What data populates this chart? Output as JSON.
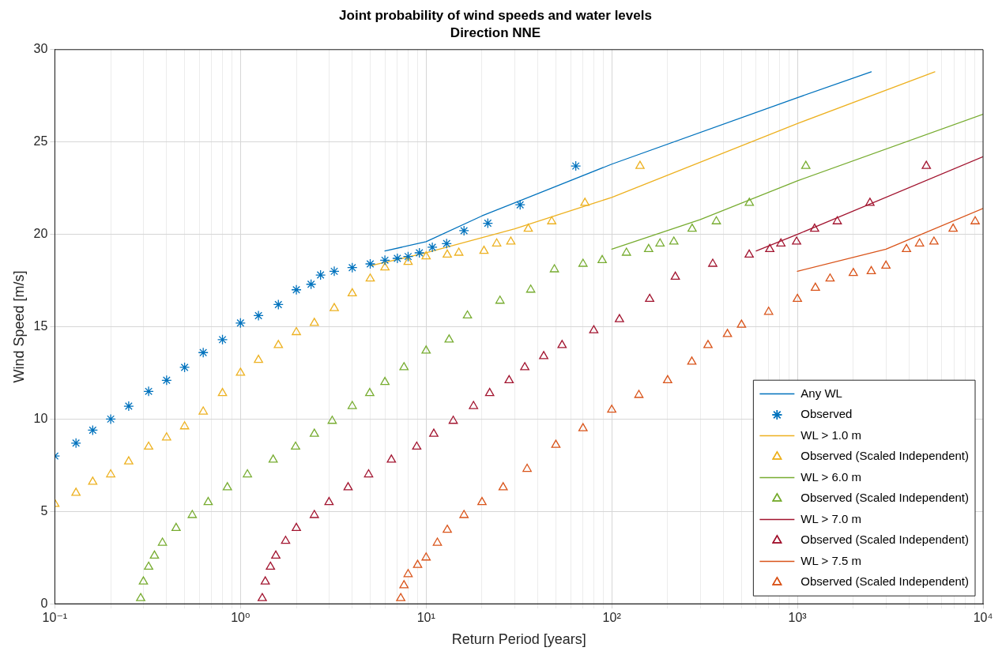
{
  "chart_data": {
    "type": "line",
    "title": "Joint probability of wind speeds and water levels",
    "subtitle": "Direction NNE",
    "xlabel": "Return Period [years]",
    "ylabel": "Wind Speed [m/s]",
    "log": "x",
    "grid": true,
    "legend": "bottom right",
    "xlim": [
      0.1,
      10000
    ],
    "ylim": [
      0,
      30
    ],
    "yticks": [
      0,
      5,
      10,
      15,
      20,
      25,
      30
    ],
    "xticks": [
      {
        "value": 0.1,
        "label": "10⁻¹"
      },
      {
        "value": 0.2,
        "label": null
      },
      {
        "value": 0.3,
        "label": null
      },
      {
        "value": 0.4,
        "label": null
      },
      {
        "value": 0.5,
        "label": null
      },
      {
        "value": 0.6,
        "label": null
      },
      {
        "value": 0.7,
        "label": null
      },
      {
        "value": 0.8,
        "label": null
      },
      {
        "value": 0.9,
        "label": null
      },
      {
        "value": 1,
        "label": "10⁰"
      },
      {
        "value": 2,
        "label": null
      },
      {
        "value": 3,
        "label": null
      },
      {
        "value": 4,
        "label": null
      },
      {
        "value": 5,
        "label": null
      },
      {
        "value": 6,
        "label": null
      },
      {
        "value": 7,
        "label": null
      },
      {
        "value": 8,
        "label": null
      },
      {
        "value": 9,
        "label": null
      },
      {
        "value": 10,
        "label": "10¹"
      },
      {
        "value": 20,
        "label": null
      },
      {
        "value": 30,
        "label": null
      },
      {
        "value": 40,
        "label": null
      },
      {
        "value": 50,
        "label": null
      },
      {
        "value": 60,
        "label": null
      },
      {
        "value": 70,
        "label": null
      },
      {
        "value": 80,
        "label": null
      },
      {
        "value": 90,
        "label": null
      },
      {
        "value": 100,
        "label": "10²"
      },
      {
        "value": 200,
        "label": null
      },
      {
        "value": 300,
        "label": null
      },
      {
        "value": 400,
        "label": null
      },
      {
        "value": 500,
        "label": null
      },
      {
        "value": 600,
        "label": null
      },
      {
        "value": 700,
        "label": null
      },
      {
        "value": 800,
        "label": null
      },
      {
        "value": 900,
        "label": null
      },
      {
        "value": 1000,
        "label": "10³"
      },
      {
        "value": 2000,
        "label": null
      },
      {
        "value": 3000,
        "label": null
      },
      {
        "value": 4000,
        "label": null
      },
      {
        "value": 5000,
        "label": null
      },
      {
        "value": 6000,
        "label": null
      },
      {
        "value": 7000,
        "label": null
      },
      {
        "value": 8000,
        "label": null
      },
      {
        "value": 9000,
        "label": null
      },
      {
        "value": 10000,
        "label": "10⁴"
      }
    ],
    "series": [
      {
        "name": "Any WL",
        "marker": "none",
        "color": "#0072bd",
        "x": [
          6,
          10,
          20,
          100,
          1000,
          2500
        ],
        "values": [
          19.1,
          19.6,
          21.0,
          23.8,
          27.4,
          28.8
        ]
      },
      {
        "name": "Observed",
        "type": "scatter",
        "marker": "cross",
        "color": "#0072bd",
        "x": [
          0.1,
          0.13,
          0.16,
          0.2,
          0.25,
          0.32,
          0.4,
          0.5,
          0.63,
          0.8,
          1,
          1.25,
          1.6,
          2,
          2.4,
          2.7,
          3.2,
          4,
          5,
          6,
          7,
          8,
          9.2,
          10.8,
          12.9,
          16,
          21.5,
          32.1,
          64
        ],
        "values": [
          8.0,
          8.7,
          9.4,
          10.0,
          10.7,
          11.5,
          12.1,
          12.8,
          13.6,
          14.3,
          15.2,
          15.6,
          16.2,
          17.0,
          17.3,
          17.8,
          18.0,
          18.2,
          18.4,
          18.6,
          18.7,
          18.8,
          19.0,
          19.3,
          19.5,
          20.2,
          20.6,
          21.6,
          23.7
        ]
      },
      {
        "name": "WL > 1.0 m",
        "marker": "none",
        "color": "#edb120",
        "x": [
          5,
          10,
          30,
          100,
          1000,
          5500
        ],
        "values": [
          18.3,
          19.0,
          20.3,
          22.0,
          26.0,
          28.8
        ]
      },
      {
        "name": "Observed (Scaled Independent)",
        "type": "scatter",
        "marker": "triangle",
        "color": "#edb120",
        "x": [
          0.1,
          0.13,
          0.16,
          0.2,
          0.25,
          0.32,
          0.4,
          0.5,
          0.63,
          0.8,
          1,
          1.25,
          1.6,
          2,
          2.5,
          3.2,
          4,
          5,
          6,
          8,
          10,
          13,
          15,
          20.5,
          24,
          28.6,
          35.5,
          47.5,
          71.7,
          142
        ],
        "values": [
          5.4,
          6.0,
          6.6,
          7.0,
          7.7,
          8.5,
          9.0,
          9.6,
          10.4,
          11.4,
          12.5,
          13.2,
          14.0,
          14.7,
          15.2,
          16.0,
          16.8,
          17.6,
          18.2,
          18.5,
          18.8,
          18.9,
          19.0,
          19.1,
          19.5,
          19.6,
          20.3,
          20.7,
          21.7,
          23.7
        ]
      },
      {
        "name": "WL > 6.0 m",
        "marker": "none",
        "color": "#77ac30",
        "x": [
          100,
          300,
          1000,
          10000
        ],
        "values": [
          19.2,
          20.8,
          22.9,
          26.5
        ]
      },
      {
        "name": "Observed (Scaled Independent)",
        "type": "scatter",
        "marker": "triangle",
        "color": "#77ac30",
        "x": [
          0.29,
          0.3,
          0.32,
          0.344,
          0.38,
          0.45,
          0.55,
          0.67,
          0.85,
          1.09,
          1.5,
          1.98,
          2.5,
          3.12,
          4,
          4.97,
          6,
          7.6,
          10,
          13.3,
          16.7,
          25,
          36.6,
          49.1,
          70,
          88.8,
          120,
          158,
          182,
          216,
          271,
          366,
          551,
          1110
        ],
        "values": [
          0.3,
          1.2,
          2.0,
          2.6,
          3.3,
          4.1,
          4.8,
          5.5,
          6.3,
          7.0,
          7.8,
          8.5,
          9.2,
          9.9,
          10.7,
          11.4,
          12.0,
          12.8,
          13.7,
          14.3,
          15.6,
          16.4,
          17.0,
          18.1,
          18.4,
          18.6,
          19.0,
          19.2,
          19.5,
          19.6,
          20.3,
          20.7,
          21.7,
          23.7
        ]
      },
      {
        "name": "WL > 7.0 m",
        "marker": "none",
        "color": "#a2142f",
        "x": [
          600,
          1000,
          10000
        ],
        "values": [
          19.1,
          20.0,
          24.2
        ]
      },
      {
        "name": "Observed (Scaled Independent)",
        "type": "scatter",
        "marker": "triangle",
        "color": "#a2142f",
        "x": [
          1.31,
          1.36,
          1.45,
          1.55,
          1.75,
          2.0,
          2.5,
          3.0,
          3.8,
          4.9,
          6.5,
          8.9,
          11,
          14,
          18,
          22,
          28,
          34,
          43,
          54,
          80,
          110,
          160,
          220,
          350,
          550,
          710,
          815,
          990,
          1238,
          1640,
          2460,
          4950
        ],
        "values": [
          0.3,
          1.2,
          2.0,
          2.6,
          3.4,
          4.1,
          4.8,
          5.5,
          6.3,
          7.0,
          7.8,
          8.5,
          9.2,
          9.9,
          10.7,
          11.4,
          12.1,
          12.8,
          13.4,
          14.0,
          14.8,
          15.4,
          16.5,
          17.7,
          18.4,
          18.9,
          19.2,
          19.5,
          19.6,
          20.3,
          20.7,
          21.7,
          23.7
        ]
      },
      {
        "name": "WL > 7.5 m",
        "marker": "none",
        "color": "#d95319",
        "x": [
          1000,
          3000,
          10000
        ],
        "values": [
          18.0,
          19.2,
          21.4
        ]
      },
      {
        "name": "Observed (Scaled Independent)",
        "type": "scatter",
        "marker": "triangle",
        "color": "#d95319",
        "x": [
          7.3,
          7.6,
          8,
          9,
          10,
          11.5,
          13,
          16,
          20,
          26,
          35,
          50,
          70,
          100,
          140,
          200,
          270,
          330,
          420,
          500,
          700,
          1000,
          1250,
          1500,
          2000,
          2500,
          3000,
          3870,
          4550,
          5440,
          6900,
          9070
        ],
        "values": [
          0.3,
          1.0,
          1.6,
          2.1,
          2.5,
          3.3,
          4.0,
          4.8,
          5.5,
          6.3,
          7.3,
          8.6,
          9.5,
          10.5,
          11.3,
          12.1,
          13.1,
          14.0,
          14.6,
          15.1,
          15.8,
          16.5,
          17.1,
          17.6,
          17.9,
          18.0,
          18.3,
          19.2,
          19.5,
          19.6,
          20.3,
          20.7
        ]
      }
    ]
  }
}
